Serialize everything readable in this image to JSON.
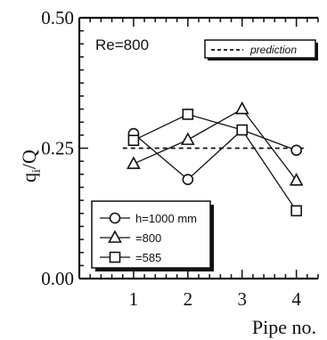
{
  "chart_data": {
    "type": "line",
    "annotation": "Re=800",
    "xlabel": "Pipe no.",
    "ylabel_main": "q",
    "ylabel_sub": "i",
    "ylabel_tail": "/Q",
    "x": [
      1,
      2,
      3,
      4
    ],
    "xticks": [
      "1",
      "2",
      "3",
      "4"
    ],
    "xlim": [
      0,
      4.4
    ],
    "ylim": [
      0,
      0.5
    ],
    "yticks": [
      "0.00",
      "0.25",
      "0.50"
    ],
    "ytick_values": [
      0,
      0.25,
      0.5
    ],
    "grid": false,
    "series": [
      {
        "name": "h=1000 mm",
        "marker": "circle",
        "values": [
          0.278,
          0.19,
          0.285,
          0.246
        ]
      },
      {
        "name": "=800",
        "marker": "triangle",
        "values": [
          0.22,
          0.266,
          0.325,
          0.188
        ]
      },
      {
        "name": "=585",
        "marker": "square",
        "values": [
          0.265,
          0.315,
          0.285,
          0.13
        ]
      }
    ],
    "prediction": {
      "name": "prediction",
      "value": 0.25
    },
    "legend_position": "lower-left",
    "prediction_legend_position": "top-right"
  }
}
